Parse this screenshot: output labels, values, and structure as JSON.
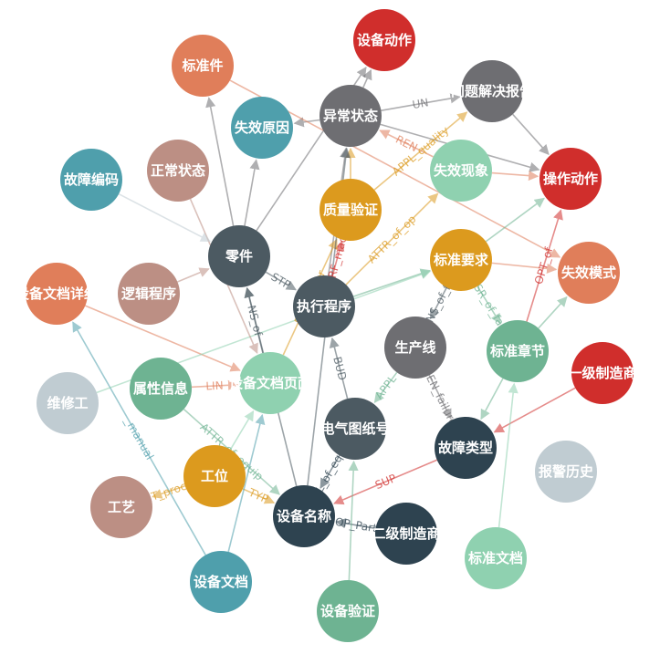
{
  "nodes": [
    {
      "id": "n01",
      "label": "设备动作",
      "color": "#d02e2c"
    },
    {
      "id": "n02",
      "label": "标准件",
      "color": "#e07e5a"
    },
    {
      "id": "n03",
      "label": "问题解决报告",
      "color": "#6e6e72"
    },
    {
      "id": "n04",
      "label": "异常状态",
      "color": "#6e6e72"
    },
    {
      "id": "n05",
      "label": "失效原因",
      "color": "#4f9fac"
    },
    {
      "id": "n06",
      "label": "故障编码",
      "color": "#4f9fac"
    },
    {
      "id": "n07",
      "label": "正常状态",
      "color": "#bc8f84"
    },
    {
      "id": "n08",
      "label": "失效现象",
      "color": "#8fd1b0"
    },
    {
      "id": "n09",
      "label": "操作动作",
      "color": "#d02e2c"
    },
    {
      "id": "n10",
      "label": "质量验证",
      "color": "#dc9a1e"
    },
    {
      "id": "n11",
      "label": "零件",
      "color": "#4c5a62"
    },
    {
      "id": "n12",
      "label": "标准要求",
      "color": "#dc9a1e"
    },
    {
      "id": "n13",
      "label": "失效模式",
      "color": "#e07e5a"
    },
    {
      "id": "n14",
      "label": "设备文档详细",
      "color": "#e07e5a"
    },
    {
      "id": "n15",
      "label": "逻辑程序",
      "color": "#bc8f84"
    },
    {
      "id": "n16",
      "label": "执行程序",
      "color": "#4c5a62"
    },
    {
      "id": "n17",
      "label": "生产线",
      "color": "#6e6e72"
    },
    {
      "id": "n18",
      "label": "标准章节",
      "color": "#6eb392"
    },
    {
      "id": "n19",
      "label": "一级制造商",
      "color": "#d02e2c"
    },
    {
      "id": "n20",
      "label": "属性信息",
      "color": "#6eb392"
    },
    {
      "id": "n21",
      "label": "设备文档页面",
      "color": "#8fd1b0"
    },
    {
      "id": "n22",
      "label": "维修工",
      "color": "#c0ccd2"
    },
    {
      "id": "n23",
      "label": "电气图纸号",
      "color": "#4c5a62"
    },
    {
      "id": "n24",
      "label": "故障类型",
      "color": "#2e4350"
    },
    {
      "id": "n25",
      "label": "工位",
      "color": "#dc9a1e"
    },
    {
      "id": "n26",
      "label": "报警历史",
      "color": "#c0ccd2"
    },
    {
      "id": "n27",
      "label": "工艺",
      "color": "#bc8f84"
    },
    {
      "id": "n28",
      "label": "设备名称",
      "color": "#2e4350"
    },
    {
      "id": "n29",
      "label": "二级制造商",
      "color": "#2e4350"
    },
    {
      "id": "n30",
      "label": "标准文档",
      "color": "#8fd1b0"
    },
    {
      "id": "n31",
      "label": "设备文档",
      "color": "#4f9fac"
    },
    {
      "id": "n32",
      "label": "设备验证",
      "color": "#6eb392"
    }
  ],
  "edges": [
    {
      "from": "n04",
      "to": "n01",
      "label": "",
      "color": "#6e6e72"
    },
    {
      "from": "n04",
      "to": "n03",
      "label": "UN",
      "color": "#6e6e72"
    },
    {
      "from": "n04",
      "to": "n09",
      "label": "",
      "color": "#6e6e72"
    },
    {
      "from": "n04",
      "to": "n05",
      "label": "",
      "color": "#6e6e72"
    },
    {
      "from": "n02",
      "to": "n13",
      "label": "",
      "color": "#e07e5a"
    },
    {
      "from": "n03",
      "to": "n09",
      "label": "",
      "color": "#6e6e72"
    },
    {
      "from": "n10",
      "to": "n03",
      "label": "APPL_quality",
      "color": "#dc9a1e"
    },
    {
      "from": "n10",
      "to": "n04",
      "label": "",
      "color": "#dc9a1e"
    },
    {
      "from": "n08",
      "to": "n09",
      "label": "",
      "color": "#e07e5a"
    },
    {
      "from": "n08",
      "to": "n04",
      "label": "REN",
      "color": "#e07e5a"
    },
    {
      "from": "n11",
      "to": "n02",
      "label": "",
      "color": "#6e6e72"
    },
    {
      "from": "n11",
      "to": "n05",
      "label": "",
      "color": "#6e6e72"
    },
    {
      "from": "n11",
      "to": "n16",
      "label": "STP",
      "color": "#4c5a62"
    },
    {
      "from": "n11",
      "to": "n01",
      "label": "",
      "color": "#6e6e72"
    },
    {
      "from": "n16",
      "to": "n10",
      "label": "PERF_machi",
      "color": "#d02e2c"
    },
    {
      "from": "n16",
      "to": "n08",
      "label": "ATTR_of_op",
      "color": "#dc9a1e"
    },
    {
      "from": "n16",
      "to": "n12",
      "label": "",
      "color": "#6eb392"
    },
    {
      "from": "n16",
      "to": "n04",
      "label": "LOG_a",
      "color": "#6e6e72"
    },
    {
      "from": "n12",
      "to": "n17",
      "label": "UNS_of_fai",
      "color": "#4c5a62"
    },
    {
      "from": "n12",
      "to": "n09",
      "label": "",
      "color": "#6eb392"
    },
    {
      "from": "n12",
      "to": "n13",
      "label": "",
      "color": "#e07e5a"
    },
    {
      "from": "n12",
      "to": "n18",
      "label": "ISR_of_fai",
      "color": "#6eb392"
    },
    {
      "from": "n17",
      "to": "n24",
      "label": "REN_failure",
      "color": "#6e6e72"
    },
    {
      "from": "n17",
      "to": "n23",
      "label": "APPL",
      "color": "#6eb392"
    },
    {
      "from": "n18",
      "to": "n13",
      "label": "",
      "color": "#6eb392"
    },
    {
      "from": "n18",
      "to": "n24",
      "label": "",
      "color": "#6eb392"
    },
    {
      "from": "n18",
      "to": "n09",
      "label": "OPT_of",
      "color": "#d02e2c"
    },
    {
      "from": "n19",
      "to": "n24",
      "label": "",
      "color": "#d02e2c"
    },
    {
      "from": "n14",
      "to": "n21",
      "label": "",
      "color": "#e07e5a"
    },
    {
      "from": "n15",
      "to": "n11",
      "label": "",
      "color": "#bc8f84"
    },
    {
      "from": "n20",
      "to": "n21",
      "label": "LIN",
      "color": "#e07e5a"
    },
    {
      "from": "n20",
      "to": "n28",
      "label": "ATTR_of_equip",
      "color": "#6eb392"
    },
    {
      "from": "n21",
      "to": "n10",
      "label": "BEL_factor",
      "color": "#dc9a1e"
    },
    {
      "from": "n21",
      "to": "n11",
      "label": "NS_of",
      "color": "#4c5a62"
    },
    {
      "from": "n23",
      "to": "n28",
      "label": "FAL_of_equip",
      "color": "#2e4350"
    },
    {
      "from": "n23",
      "to": "n16",
      "label": "BUD",
      "color": "#4c5a62"
    },
    {
      "from": "n24",
      "to": "n28",
      "label": "SUP",
      "color": "#d02e2c"
    },
    {
      "from": "n25",
      "to": "n27",
      "label": "T_proc",
      "color": "#dc9a1e"
    },
    {
      "from": "n25",
      "to": "n28",
      "label": "TYP",
      "color": "#dc9a1e"
    },
    {
      "from": "n25",
      "to": "n21",
      "label": "",
      "color": "#8fd1b0"
    },
    {
      "from": "n29",
      "to": "n28",
      "label": "OP_Part",
      "color": "#2e4350"
    },
    {
      "from": "n30",
      "to": "n18",
      "label": "",
      "color": "#8fd1b0"
    },
    {
      "from": "n31",
      "to": "n14",
      "label": "_manual",
      "color": "#4f9fac"
    },
    {
      "from": "n31",
      "to": "n21",
      "label": "",
      "color": "#4f9fac"
    },
    {
      "from": "n32",
      "to": "n23",
      "label": "",
      "color": "#6eb392"
    },
    {
      "from": "n22",
      "to": "n12",
      "label": "",
      "color": "#8fd1b0"
    },
    {
      "from": "n07",
      "to": "n21",
      "label": "",
      "color": "#bc8f84"
    },
    {
      "from": "n06",
      "to": "n11",
      "label": "",
      "color": "#c0ccd2"
    },
    {
      "from": "n28",
      "to": "n11",
      "label": "PA",
      "color": "#4c5a62"
    },
    {
      "from": "n28",
      "to": "n04",
      "label": "",
      "color": "#4c5a62"
    }
  ]
}
